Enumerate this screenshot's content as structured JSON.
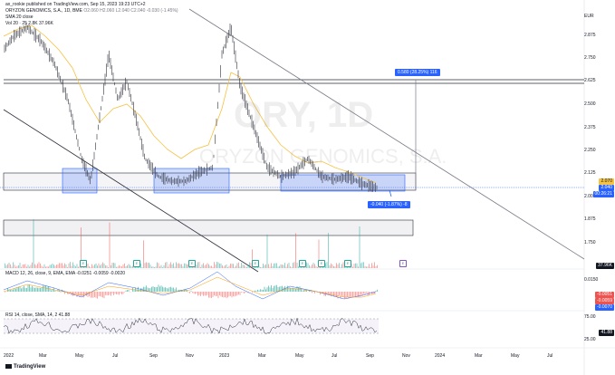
{
  "header": {
    "publisher": "ax_rookie published on TradingView.com, Sep 15, 2023 19:23 UTC+2",
    "symbol": "ORYZON GENOMICS, S.A., 1D, BME",
    "ohlc": "O2.060 H2.060 L2.040 C2.040 -0.030 (-1.45%)",
    "sma_legend": "SMA 20 close",
    "vol_legend": "Vol 20 · 25  2.8K  37.96K"
  },
  "watermark": {
    "ticker": "ORY, 1D",
    "name": "ORYZON GENOMICS, S.A."
  },
  "price_axis": {
    "labels": [
      "EUR",
      "2.875",
      "2.750",
      "2.625",
      "2.500",
      "2.375",
      "2.250",
      "2.125",
      "2.000",
      "1.875",
      "1.750"
    ],
    "last_price": "2.040",
    "countdown": "00:26:21",
    "level_badge": "2.070",
    "volume_badge": "37.96K"
  },
  "measure": {
    "up_label": "0.580 (28.25%) 116",
    "down_label": "-0.040 (-1.87%) -8"
  },
  "macd": {
    "legend": "MACD 12, 26, close, 9, EMA, EMA  -0.0251  -0.0059  -0.0020",
    "labels": [
      "0.0150",
      "-0.0051",
      "-0.0059",
      "-0.0070"
    ]
  },
  "rsi": {
    "legend": "RSI 14, close, SMA, 14, 2  41.88",
    "labels": [
      "75.00",
      "41.88",
      "25.00"
    ]
  },
  "time_axis": [
    "2022",
    "Mar",
    "May",
    "Jul",
    "Sep",
    "Nov",
    "2023",
    "Mar",
    "May",
    "Jul",
    "Sep",
    "Nov",
    "2024",
    "Mar",
    "May",
    "Jul"
  ],
  "events": [
    "E",
    "E",
    "E",
    "E",
    "E",
    "E",
    "E",
    "E"
  ],
  "footer": {
    "brand": "TradingView"
  },
  "colors": {
    "blue_zone": "#2962ff",
    "sma": "#f5c242",
    "up": "#26a69a",
    "down": "#ef5350",
    "badge_blue": "#2962ff"
  },
  "icons": [
    "tradingview-logo-icon",
    "dividend-event-icon"
  ]
}
